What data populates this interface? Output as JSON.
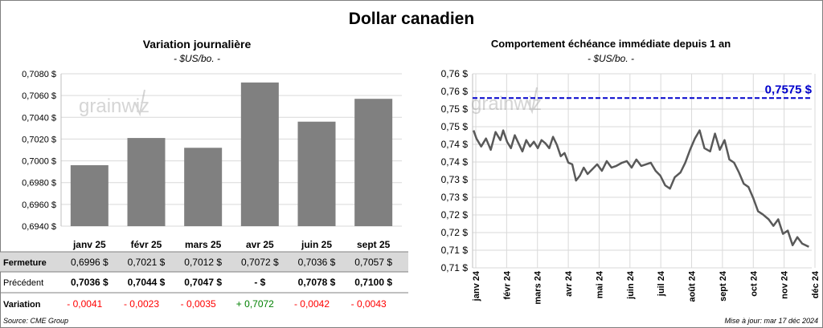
{
  "title": "Dollar canadien",
  "left": {
    "title": "Variation  journalière",
    "subtitle": "- $US/bo. -",
    "watermark": "grainwiz",
    "table": {
      "row_labels": [
        "Fermeture",
        "Précédent",
        "Variation"
      ],
      "fermeture": [
        "0,6996  $",
        "0,7021  $",
        "0,7012  $",
        "0,7072  $",
        "0,7036  $",
        "0,7057  $"
      ],
      "precedent": [
        "0,7036  $",
        "0,7044  $",
        "0,7047  $",
        "-       $",
        "0,7078  $",
        "0,7100  $"
      ],
      "variation": [
        "- 0,0041",
        "- 0,0023",
        "- 0,0035",
        "+ 0,7072",
        "- 0,0042",
        "- 0,0043"
      ],
      "variation_colors": [
        "#ff0000",
        "#ff0000",
        "#ff0000",
        "#008000",
        "#ff0000",
        "#ff0000"
      ]
    }
  },
  "right": {
    "title": "Comportement échéance immédiate depuis 1 an",
    "subtitle": "- $US/bo. -",
    "watermark": "grainwiz",
    "reference_label": "0,7575 $"
  },
  "footer": {
    "source": "Source: CME Group",
    "updated": "Mise à jour: mar 17 déc 2024"
  },
  "colors": {
    "bar": "#808080",
    "line": "#595959",
    "reference": "#0000cc",
    "grid": "#d9d9d9",
    "table_band": "#d9d9d9"
  },
  "chart_data": [
    {
      "type": "bar",
      "title": "Variation  journalière",
      "subtitle": "- $US/bo. -",
      "categories": [
        "janv 25",
        "févr 25",
        "mars 25",
        "avr 25",
        "juin 25",
        "sept 25"
      ],
      "values": [
        0.6996,
        0.7021,
        0.7012,
        0.7072,
        0.7036,
        0.7057
      ],
      "ylim": [
        0.694,
        0.708
      ],
      "yticks": [
        "0,6940 $",
        "0,6960 $",
        "0,6980 $",
        "0,7000 $",
        "0,7020 $",
        "0,7040 $",
        "0,7060 $",
        "0,7080 $"
      ],
      "grid": true
    },
    {
      "type": "line",
      "title": "Comportement échéance immédiate depuis 1 an",
      "subtitle": "- $US/bo. -",
      "xticks": [
        "janv 24",
        "févr 24",
        "mars 24",
        "avr 24",
        "mai 24",
        "juin 24",
        "juil 24",
        "août 24",
        "sept 24",
        "oct 24",
        "nov 24",
        "déc 24"
      ],
      "yticks": [
        "0,71 $",
        "0,71 $",
        "0,72 $",
        "0,72 $",
        "0,73 $",
        "0,73 $",
        "0,74 $",
        "0,74 $",
        "0,75 $",
        "0,75 $",
        "0,76 $",
        "0,76 $"
      ],
      "ylim": [
        0.705,
        0.765
      ],
      "reference_line": 0.7575,
      "series": [
        {
          "x": [
            "2024-01-02",
            "2024-01-05",
            "2024-01-10",
            "2024-01-15",
            "2024-01-20",
            "2024-01-25",
            "2024-01-30",
            "2024-02-02",
            "2024-02-06",
            "2024-02-10",
            "2024-02-14",
            "2024-02-18",
            "2024-02-22",
            "2024-02-26",
            "2024-03-01",
            "2024-03-05",
            "2024-03-09",
            "2024-03-13",
            "2024-03-17",
            "2024-03-21",
            "2024-03-25",
            "2024-03-29",
            "2024-04-02",
            "2024-04-06",
            "2024-04-10",
            "2024-04-14",
            "2024-04-18",
            "2024-04-22",
            "2024-04-26",
            "2024-04-30",
            "2024-05-05",
            "2024-05-10",
            "2024-05-15",
            "2024-05-20",
            "2024-05-25",
            "2024-05-30",
            "2024-06-05",
            "2024-06-10",
            "2024-06-15",
            "2024-06-20",
            "2024-06-25",
            "2024-06-30",
            "2024-07-05",
            "2024-07-10",
            "2024-07-15",
            "2024-07-20",
            "2024-07-25",
            "2024-07-30",
            "2024-08-05",
            "2024-08-10",
            "2024-08-15",
            "2024-08-20",
            "2024-08-25",
            "2024-08-30",
            "2024-09-05",
            "2024-09-10",
            "2024-09-15",
            "2024-09-20",
            "2024-09-25",
            "2024-09-30",
            "2024-10-05",
            "2024-10-10",
            "2024-10-15",
            "2024-10-20",
            "2024-10-25",
            "2024-10-30",
            "2024-11-05",
            "2024-11-10",
            "2024-11-15",
            "2024-11-20",
            "2024-11-25",
            "2024-11-30",
            "2024-12-05",
            "2024-12-10",
            "2024-12-17"
          ],
          "values": [
            0.7475,
            0.745,
            0.7425,
            0.745,
            0.7415,
            0.747,
            0.7445,
            0.7475,
            0.744,
            0.742,
            0.746,
            0.7435,
            0.741,
            0.7445,
            0.7425,
            0.744,
            0.742,
            0.7445,
            0.7435,
            0.742,
            0.7455,
            0.743,
            0.7395,
            0.7405,
            0.7375,
            0.737,
            0.732,
            0.7335,
            0.736,
            0.734,
            0.7355,
            0.737,
            0.735,
            0.738,
            0.736,
            0.7365,
            0.7375,
            0.738,
            0.736,
            0.7385,
            0.7365,
            0.737,
            0.7375,
            0.735,
            0.7335,
            0.7305,
            0.7295,
            0.733,
            0.7345,
            0.7375,
            0.7415,
            0.745,
            0.7475,
            0.742,
            0.741,
            0.7465,
            0.7415,
            0.7445,
            0.7385,
            0.7375,
            0.7345,
            0.731,
            0.73,
            0.7265,
            0.7225,
            0.7215,
            0.72,
            0.718,
            0.72,
            0.7155,
            0.7165,
            0.712,
            0.7145,
            0.7125,
            0.7115
          ]
        }
      ]
    }
  ]
}
